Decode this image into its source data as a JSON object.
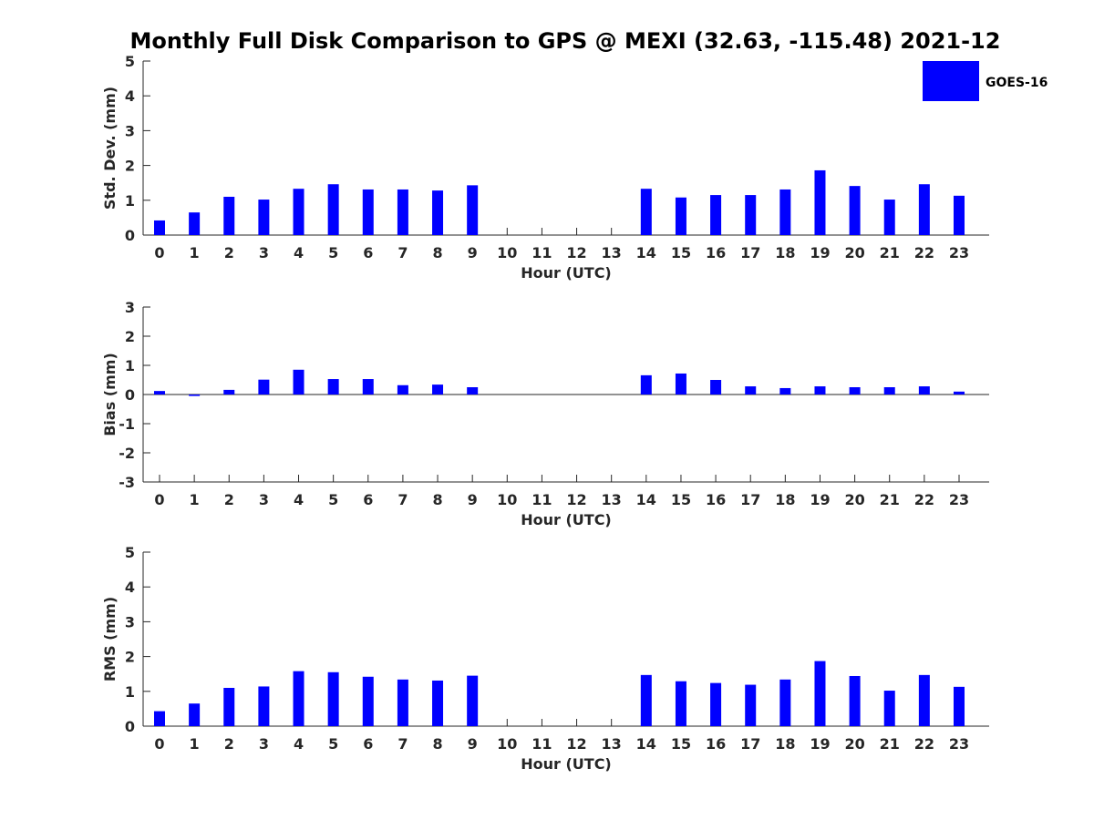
{
  "figure": {
    "title": "Monthly Full Disk Comparison to GPS @ MEXI (32.63, -115.48) 2021-12"
  },
  "legend": {
    "label": "GOES-16",
    "color": "#0000ff",
    "placement": "top-right"
  },
  "chart_data": [
    {
      "type": "bar",
      "name": "std-dev",
      "xlabel": "Hour (UTC)",
      "ylabel": "Std. Dev. (mm)",
      "ylim": [
        0,
        5
      ],
      "yticks": [
        "0",
        "1",
        "2",
        "3",
        "4",
        "5"
      ],
      "categories": [
        "0",
        "1",
        "2",
        "3",
        "4",
        "5",
        "6",
        "7",
        "8",
        "9",
        "10",
        "11",
        "12",
        "13",
        "14",
        "15",
        "16",
        "17",
        "18",
        "19",
        "20",
        "21",
        "22",
        "23"
      ],
      "series": [
        {
          "name": "GOES-16",
          "values": [
            0.42,
            0.65,
            1.1,
            1.02,
            1.33,
            1.46,
            1.31,
            1.31,
            1.28,
            1.43,
            null,
            null,
            null,
            null,
            1.33,
            1.08,
            1.15,
            1.15,
            1.31,
            1.86,
            1.41,
            1.02,
            1.46,
            1.13
          ]
        }
      ],
      "grid": false
    },
    {
      "type": "bar",
      "name": "bias",
      "xlabel": "Hour (UTC)",
      "ylabel": "Bias (mm)",
      "ylim": [
        -3,
        3
      ],
      "yticks": [
        "-3",
        "-2",
        "-1",
        "0",
        "1",
        "2",
        "3"
      ],
      "categories": [
        "0",
        "1",
        "2",
        "3",
        "4",
        "5",
        "6",
        "7",
        "8",
        "9",
        "10",
        "11",
        "12",
        "13",
        "14",
        "15",
        "16",
        "17",
        "18",
        "19",
        "20",
        "21",
        "22",
        "23"
      ],
      "series": [
        {
          "name": "GOES-16",
          "values": [
            0.12,
            -0.05,
            0.16,
            0.51,
            0.85,
            0.53,
            0.53,
            0.32,
            0.34,
            0.25,
            null,
            null,
            null,
            null,
            0.66,
            0.72,
            0.5,
            0.28,
            0.22,
            0.28,
            0.25,
            0.25,
            0.28,
            0.1
          ]
        }
      ],
      "grid": false
    },
    {
      "type": "bar",
      "name": "rms",
      "xlabel": "Hour (UTC)",
      "ylabel": "RMS (mm)",
      "ylim": [
        0,
        5
      ],
      "yticks": [
        "0",
        "1",
        "2",
        "3",
        "4",
        "5"
      ],
      "categories": [
        "0",
        "1",
        "2",
        "3",
        "4",
        "5",
        "6",
        "7",
        "8",
        "9",
        "10",
        "11",
        "12",
        "13",
        "14",
        "15",
        "16",
        "17",
        "18",
        "19",
        "20",
        "21",
        "22",
        "23"
      ],
      "series": [
        {
          "name": "GOES-16",
          "values": [
            0.43,
            0.65,
            1.1,
            1.14,
            1.58,
            1.55,
            1.42,
            1.34,
            1.31,
            1.45,
            null,
            null,
            null,
            null,
            1.47,
            1.29,
            1.24,
            1.19,
            1.34,
            1.87,
            1.44,
            1.02,
            1.47,
            1.13
          ]
        }
      ],
      "grid": false
    }
  ]
}
